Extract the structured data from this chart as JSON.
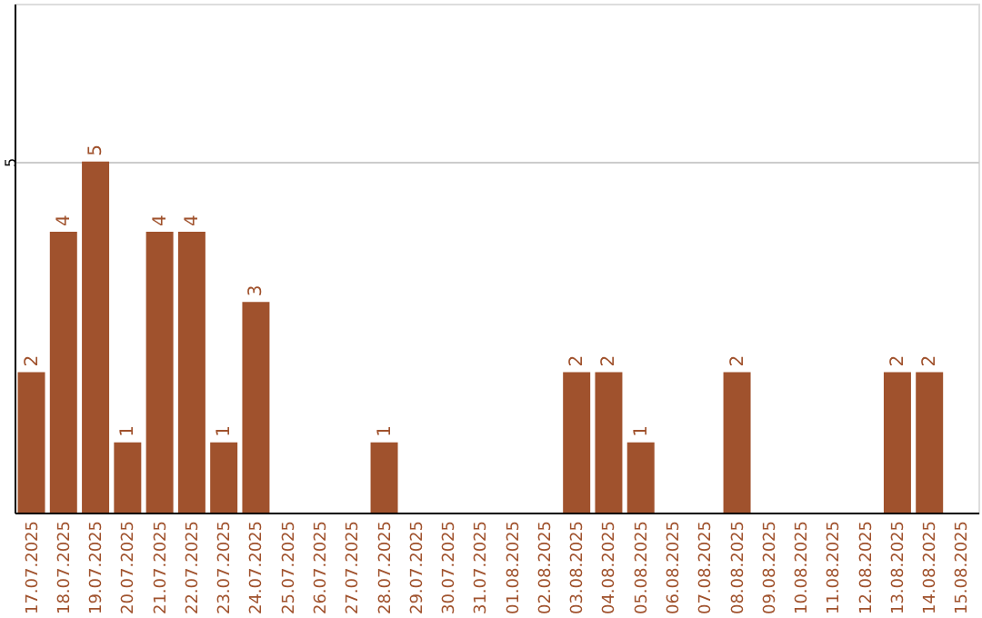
{
  "chart_data": {
    "type": "bar",
    "categories": [
      "17.07.2025",
      "18.07.2025",
      "19.07.2025",
      "20.07.2025",
      "21.07.2025",
      "22.07.2025",
      "23.07.2025",
      "24.07.2025",
      "25.07.2025",
      "26.07.2025",
      "27.07.2025",
      "28.07.2025",
      "29.07.2025",
      "30.07.2025",
      "31.07.2025",
      "01.08.2025",
      "02.08.2025",
      "03.08.2025",
      "04.08.2025",
      "05.08.2025",
      "06.08.2025",
      "07.08.2025",
      "08.08.2025",
      "09.08.2025",
      "10.08.2025",
      "11.08.2025",
      "12.08.2025",
      "13.08.2025",
      "14.08.2025",
      "15.08.2025"
    ],
    "values": [
      2,
      4,
      5,
      1,
      4,
      4,
      1,
      3,
      null,
      null,
      null,
      1,
      null,
      null,
      null,
      null,
      null,
      2,
      2,
      1,
      null,
      null,
      2,
      null,
      null,
      null,
      null,
      2,
      2,
      null
    ],
    "color": "#a0522d",
    "ylim": [
      0,
      7.25
    ],
    "yticks": [
      5
    ],
    "grid": "y",
    "data_labels": true
  }
}
